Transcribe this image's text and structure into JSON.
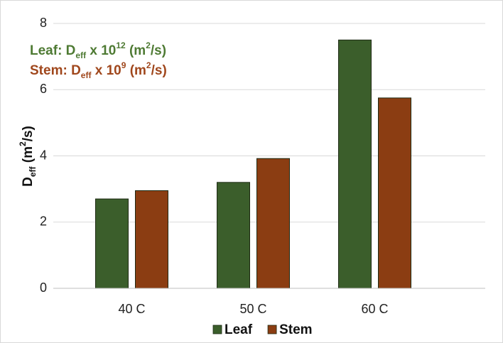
{
  "chart_data": {
    "type": "bar",
    "categories": [
      "40 C",
      "50 C",
      "60 C"
    ],
    "series": [
      {
        "name": "Leaf",
        "color": "#3b5e2b",
        "values": [
          2.7,
          3.2,
          7.5
        ]
      },
      {
        "name": "Stem",
        "color": "#8b3d12",
        "values": [
          2.95,
          3.92,
          5.75
        ]
      }
    ],
    "ylim": [
      0,
      8
    ],
    "yticks": [
      0,
      2,
      4,
      6,
      8
    ],
    "grid": true,
    "ylabel": [
      "D",
      "eff",
      " (m",
      "2",
      "/s)"
    ],
    "annotations": [
      {
        "color": "#4e7a33",
        "parts": [
          "Leaf: D",
          "eff",
          " x 10",
          "12",
          " (m",
          "2",
          "/s)"
        ]
      },
      {
        "color": "#a0471c",
        "parts": [
          "Stem: D",
          "eff",
          " x 10",
          "9",
          " (m",
          "2",
          "/s)"
        ]
      }
    ],
    "legend": "bottom"
  }
}
